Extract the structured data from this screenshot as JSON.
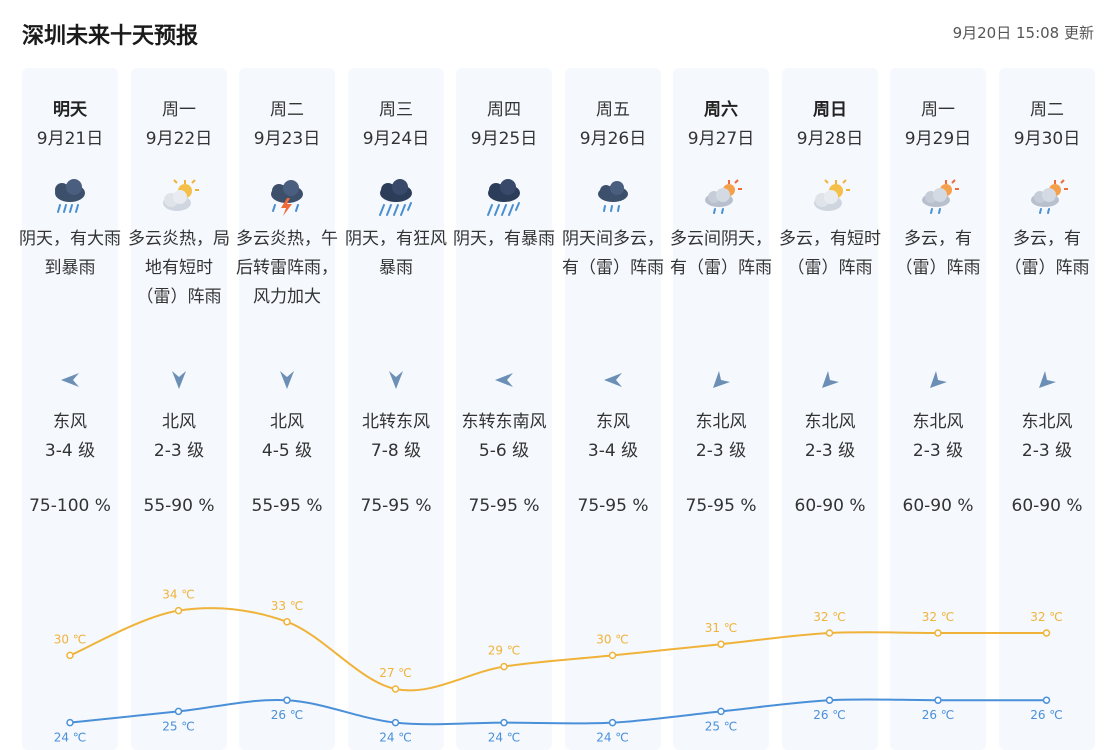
{
  "header": {
    "title": "深圳未来十天预报",
    "updated": "9月20日 15:08 更新"
  },
  "colors": {
    "high": "#f0b33a",
    "low": "#4a90d9",
    "column_bg": "#f5f8fd",
    "arrow": "#6b8fb5"
  },
  "days": [
    {
      "day": "明天",
      "bold": true,
      "date": "9月21日",
      "icon": "heavy-rain-icon",
      "desc": "阴天，有大雨到暴雨",
      "wind_dir": "东风",
      "wind_level": "3-4 级",
      "wind_arrow": "arrow-left",
      "humidity": "75-100 %",
      "high": 30,
      "high_label": "30 ℃",
      "low": 24,
      "low_label": "24 ℃"
    },
    {
      "day": "周一",
      "bold": false,
      "date": "9月22日",
      "icon": "partly-cloudy-sun-icon",
      "desc": "多云炎热，局地有短时（雷）阵雨",
      "wind_dir": "北风",
      "wind_level": "2-3 级",
      "wind_arrow": "arrow-down",
      "humidity": "55-90 %",
      "high": 34,
      "high_label": "34 ℃",
      "low": 25,
      "low_label": "25 ℃"
    },
    {
      "day": "周二",
      "bold": false,
      "date": "9月23日",
      "icon": "thunderstorm-icon",
      "desc": "多云炎热，午后转雷阵雨，风力加大",
      "wind_dir": "北风",
      "wind_level": "4-5 级",
      "wind_arrow": "arrow-down",
      "humidity": "55-95 %",
      "high": 33,
      "high_label": "33 ℃",
      "low": 26,
      "low_label": "26 ℃"
    },
    {
      "day": "周三",
      "bold": false,
      "date": "9月24日",
      "icon": "rainstorm-icon",
      "desc": "阴天，有狂风暴雨",
      "wind_dir": "北转东风",
      "wind_level": "7-8 级",
      "wind_arrow": "arrow-down",
      "humidity": "75-95 %",
      "high": 27,
      "high_label": "27 ℃",
      "low": 24,
      "low_label": "24 ℃"
    },
    {
      "day": "周四",
      "bold": false,
      "date": "9月25日",
      "icon": "rainstorm-icon",
      "desc": "阴天，有暴雨",
      "wind_dir": "东转东南风",
      "wind_level": "5-6 级",
      "wind_arrow": "arrow-left",
      "humidity": "75-95 %",
      "high": 29,
      "high_label": "29 ℃",
      "low": 24,
      "low_label": "24 ℃"
    },
    {
      "day": "周五",
      "bold": false,
      "date": "9月26日",
      "icon": "cloudy-rain-icon",
      "desc": "阴天间多云，有（雷）阵雨",
      "wind_dir": "东风",
      "wind_level": "3-4 级",
      "wind_arrow": "arrow-left",
      "humidity": "75-95 %",
      "high": 30,
      "high_label": "30 ℃",
      "low": 24,
      "low_label": "24 ℃"
    },
    {
      "day": "周六",
      "bold": true,
      "date": "9月27日",
      "icon": "sun-cloud-rain-icon",
      "desc": "多云间阴天，有（雷）阵雨",
      "wind_dir": "东北风",
      "wind_level": "2-3 级",
      "wind_arrow": "arrow-down-left",
      "humidity": "75-95 %",
      "high": 31,
      "high_label": "31 ℃",
      "low": 25,
      "low_label": "25 ℃"
    },
    {
      "day": "周日",
      "bold": true,
      "date": "9月28日",
      "icon": "partly-cloudy-sun-icon",
      "desc": "多云，有短时（雷）阵雨",
      "wind_dir": "东北风",
      "wind_level": "2-3 级",
      "wind_arrow": "arrow-down-left",
      "humidity": "60-90 %",
      "high": 32,
      "high_label": "32 ℃",
      "low": 26,
      "low_label": "26 ℃"
    },
    {
      "day": "周一",
      "bold": false,
      "date": "9月29日",
      "icon": "sun-cloud-rain-icon",
      "desc": "多云，有（雷）阵雨",
      "wind_dir": "东北风",
      "wind_level": "2-3 级",
      "wind_arrow": "arrow-down-left",
      "humidity": "60-90 %",
      "high": 32,
      "high_label": "32 ℃",
      "low": 26,
      "low_label": "26 ℃"
    },
    {
      "day": "周二",
      "bold": false,
      "date": "9月30日",
      "icon": "sun-cloud-rain-icon",
      "desc": "多云，有（雷）阵雨",
      "wind_dir": "东北风",
      "wind_level": "2-3 级",
      "wind_arrow": "arrow-down-left",
      "humidity": "60-90 %",
      "high": 32,
      "high_label": "32 ℃",
      "low": 26,
      "low_label": "26 ℃"
    }
  ]
}
